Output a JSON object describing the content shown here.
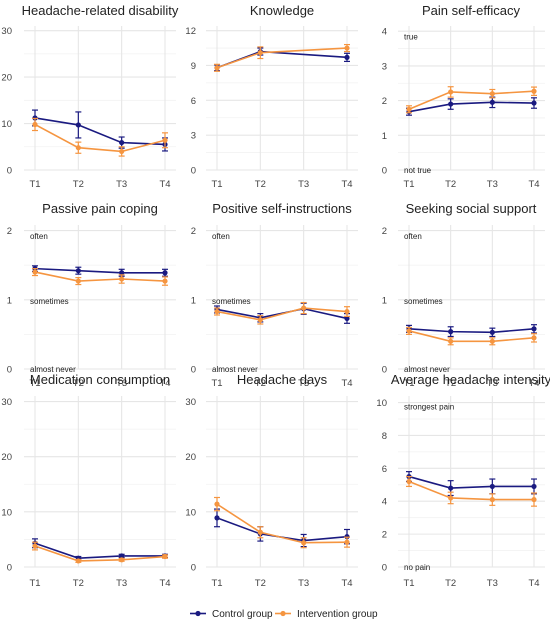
{
  "colors": {
    "control": "#1a1a80",
    "intervention": "#f59540",
    "grid": "#e6e6e6",
    "text": "#222222",
    "tick": "#444444"
  },
  "legend": {
    "items": [
      "Control group",
      "Intervention group"
    ]
  },
  "chart_data": [
    {
      "type": "line",
      "title": "Headache-related disability",
      "categories": [
        "T1",
        "T2",
        "T3",
        "T4"
      ],
      "y_ticks": [
        0,
        10,
        20,
        30
      ],
      "ylim": [
        0,
        31
      ],
      "annotations": [],
      "series": [
        {
          "name": "Control group",
          "values": [
            11.2,
            9.7,
            5.9,
            5.5
          ],
          "err": [
            1.7,
            2.8,
            1.2,
            1.4
          ]
        },
        {
          "name": "Intervention group",
          "values": [
            9.8,
            4.8,
            4.0,
            6.4
          ],
          "err": [
            1.3,
            1.2,
            1.0,
            1.6
          ]
        }
      ]
    },
    {
      "type": "line",
      "title": "Knowledge",
      "categories": [
        "T1",
        "T2",
        "T3",
        "T4"
      ],
      "y_ticks": [
        0,
        3,
        6,
        9,
        12
      ],
      "ylim": [
        0,
        12.4
      ],
      "annotations": [],
      "series": [
        {
          "name": "Control group",
          "values": [
            8.8,
            10.2,
            null,
            9.7
          ],
          "err": [
            0.25,
            0.3,
            null,
            0.35
          ]
        },
        {
          "name": "Intervention group",
          "values": [
            8.8,
            10.1,
            null,
            10.5
          ],
          "err": [
            0.3,
            0.5,
            null,
            0.3
          ]
        }
      ]
    },
    {
      "type": "line",
      "title": "Pain self-efficacy",
      "categories": [
        "T1",
        "T2",
        "T3",
        "T4"
      ],
      "y_ticks": [
        0,
        1,
        2,
        3,
        4
      ],
      "ylim": [
        0,
        4.15
      ],
      "annotations": [
        {
          "text": "true",
          "y": 3.85
        },
        {
          "text": "not true",
          "y": 0.0
        }
      ],
      "series": [
        {
          "name": "Control group",
          "values": [
            1.68,
            1.9,
            1.95,
            1.93
          ],
          "err": [
            0.1,
            0.15,
            0.15,
            0.15
          ]
        },
        {
          "name": "Intervention group",
          "values": [
            1.75,
            2.25,
            2.2,
            2.27
          ],
          "err": [
            0.1,
            0.15,
            0.12,
            0.12
          ]
        }
      ]
    },
    {
      "type": "line",
      "title": "Passive pain coping",
      "categories": [
        "T1",
        "T2",
        "T3",
        "T4"
      ],
      "y_ticks": [
        0,
        1,
        2
      ],
      "ylim": [
        0,
        2.08
      ],
      "annotations": [
        {
          "text": "often",
          "y": 1.92
        },
        {
          "text": "sometimes",
          "y": 0.98
        },
        {
          "text": "almost never",
          "y": 0.0
        }
      ],
      "series": [
        {
          "name": "Control group",
          "values": [
            1.45,
            1.42,
            1.39,
            1.39
          ],
          "err": [
            0.04,
            0.05,
            0.05,
            0.05
          ]
        },
        {
          "name": "Intervention group",
          "values": [
            1.4,
            1.27,
            1.3,
            1.27
          ],
          "err": [
            0.05,
            0.05,
            0.06,
            0.06
          ]
        }
      ]
    },
    {
      "type": "line",
      "title": "Positive self-instructions",
      "categories": [
        "T1",
        "T2",
        "T3",
        "T4"
      ],
      "y_ticks": [
        0,
        1,
        2
      ],
      "ylim": [
        0,
        2.08
      ],
      "annotations": [
        {
          "text": "often",
          "y": 1.92
        },
        {
          "text": "sometimes",
          "y": 0.98
        },
        {
          "text": "almost never",
          "y": 0.0
        }
      ],
      "series": [
        {
          "name": "Control group",
          "values": [
            0.86,
            0.74,
            0.87,
            0.73
          ],
          "err": [
            0.05,
            0.06,
            0.08,
            0.07
          ]
        },
        {
          "name": "Intervention group",
          "values": [
            0.83,
            0.71,
            0.88,
            0.83
          ],
          "err": [
            0.05,
            0.06,
            0.08,
            0.07
          ]
        }
      ]
    },
    {
      "type": "line",
      "title": "Seeking social support",
      "categories": [
        "T1",
        "T2",
        "T3",
        "T4"
      ],
      "y_ticks": [
        0,
        1,
        2
      ],
      "ylim": [
        0,
        2.08
      ],
      "annotations": [
        {
          "text": "often",
          "y": 1.92
        },
        {
          "text": "sometimes",
          "y": 0.98
        },
        {
          "text": "almost never",
          "y": 0.0
        }
      ],
      "series": [
        {
          "name": "Control group",
          "values": [
            0.58,
            0.54,
            0.53,
            0.58
          ],
          "err": [
            0.05,
            0.07,
            0.06,
            0.06
          ]
        },
        {
          "name": "Intervention group",
          "values": [
            0.55,
            0.4,
            0.4,
            0.45
          ],
          "err": [
            0.05,
            0.05,
            0.05,
            0.06
          ]
        }
      ]
    },
    {
      "type": "line",
      "title": "Medication consumption",
      "categories": [
        "T1",
        "T2",
        "T3",
        "T4"
      ],
      "y_ticks": [
        0,
        10,
        20,
        30
      ],
      "ylim": [
        0,
        31
      ],
      "annotations": [],
      "series": [
        {
          "name": "Control group",
          "values": [
            4.3,
            1.6,
            2.0,
            2.0
          ],
          "err": [
            0.8,
            0.3,
            0.3,
            0.3
          ]
        },
        {
          "name": "Intervention group",
          "values": [
            3.8,
            1.1,
            1.3,
            1.9
          ],
          "err": [
            0.7,
            0.25,
            0.25,
            0.3
          ]
        }
      ]
    },
    {
      "type": "line",
      "title": "Headache days",
      "categories": [
        "T1",
        "T2",
        "T3",
        "T4"
      ],
      "y_ticks": [
        0,
        10,
        20,
        30
      ],
      "ylim": [
        0,
        31
      ],
      "annotations": [],
      "series": [
        {
          "name": "Control group",
          "values": [
            8.9,
            6.0,
            4.8,
            5.5
          ],
          "err": [
            1.6,
            1.3,
            1.1,
            1.3
          ]
        },
        {
          "name": "Intervention group",
          "values": [
            11.4,
            6.3,
            4.4,
            4.5
          ],
          "err": [
            1.2,
            1.0,
            0.9,
            0.9
          ]
        }
      ]
    },
    {
      "type": "line",
      "title": "Average headache intensity",
      "categories": [
        "T1",
        "T2",
        "T3",
        "T4"
      ],
      "y_ticks": [
        0,
        2,
        4,
        6,
        8,
        10
      ],
      "ylim": [
        0,
        10.4
      ],
      "annotations": [
        {
          "text": "strongest pain",
          "y": 9.75
        },
        {
          "text": "no pain",
          "y": 0.0
        }
      ],
      "series": [
        {
          "name": "Control group",
          "values": [
            5.5,
            4.8,
            4.9,
            4.9
          ],
          "err": [
            0.3,
            0.45,
            0.45,
            0.45
          ]
        },
        {
          "name": "Intervention group",
          "values": [
            5.2,
            4.2,
            4.1,
            4.1
          ],
          "err": [
            0.3,
            0.35,
            0.35,
            0.4
          ]
        }
      ]
    }
  ]
}
